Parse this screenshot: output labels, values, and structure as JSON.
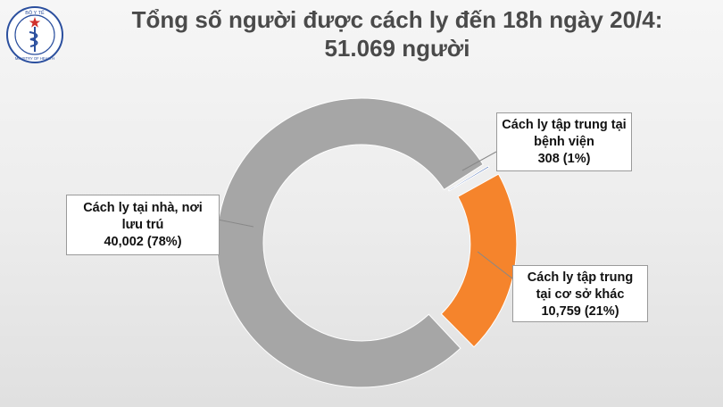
{
  "header": {
    "logo_text_top": "BỘ Y TẾ",
    "logo_text_bottom": "MINISTRY OF HEALTH",
    "title_line1": "Tổng số người được cách ly đến 18h ngày 20/4:",
    "title_line2": "51.069 người"
  },
  "colors": {
    "home": "#a6a6a6",
    "other_facility": "#f5842c",
    "hospital": "#3c63b2"
  },
  "labels": {
    "home": {
      "line1": "Cách ly tại nhà, nơi",
      "line2": "lưu trú",
      "line3": "40,002  (78%)"
    },
    "hospital": {
      "line1": "Cách ly tập trung tại",
      "line2": "bệnh viện",
      "line3": "308  (1%)"
    },
    "other": {
      "line1": "Cách ly tập trung",
      "line2": "tại cơ sở khác",
      "line3": "10,759  (21%)"
    }
  },
  "chart_data": {
    "type": "pie",
    "donut": true,
    "title": "Tổng số người được cách ly đến 18h ngày 20/4: 51.069 người",
    "total": 51069,
    "slices": [
      {
        "label": "Cách ly tập trung tại bệnh viện",
        "value": 308,
        "percent": 1,
        "color": "#3c63b2"
      },
      {
        "label": "Cách ly tập trung tại cơ sở khác",
        "value": 10759,
        "percent": 21,
        "color": "#f5842c"
      },
      {
        "label": "Cách ly tại nhà, nơi lưu trú",
        "value": 40002,
        "percent": 78,
        "color": "#a6a6a6"
      }
    ]
  }
}
